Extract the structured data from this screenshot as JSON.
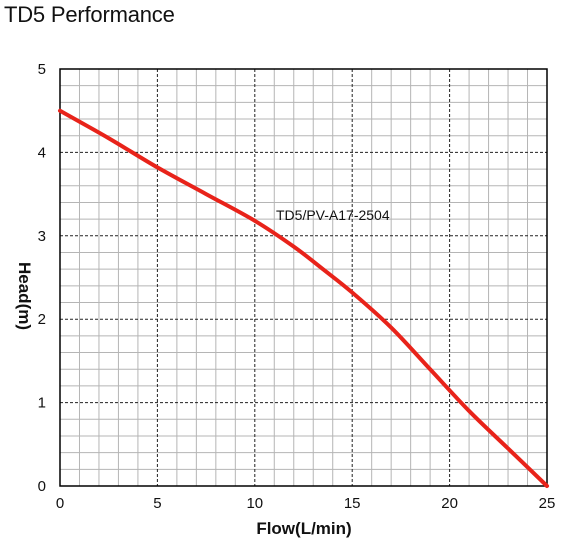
{
  "chart_data": {
    "type": "line",
    "title": "TD5 Performance",
    "xlabel": "Flow(L/min)",
    "ylabel": "Head(m)",
    "xlim": [
      0,
      25
    ],
    "ylim": [
      0,
      5
    ],
    "x_ticks": [
      "0",
      "5",
      "10",
      "15",
      "20",
      "25"
    ],
    "y_ticks": [
      "0",
      "1",
      "2",
      "3",
      "4",
      "5"
    ],
    "grid": true,
    "series": [
      {
        "name": "TD5/PV-A17-2504",
        "color": "#e8231a",
        "x": [
          0,
          2.5,
          5,
          7.5,
          10,
          12,
          13.5,
          15,
          17,
          19,
          21,
          23,
          25
        ],
        "y": [
          4.5,
          4.17,
          3.82,
          3.5,
          3.18,
          2.87,
          2.6,
          2.32,
          1.9,
          1.4,
          0.9,
          0.45,
          0
        ]
      }
    ]
  }
}
